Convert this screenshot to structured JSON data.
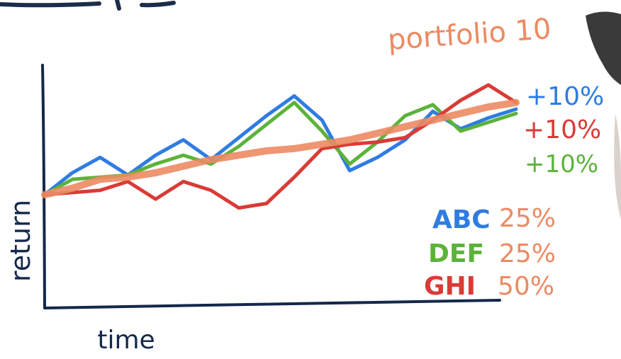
{
  "portfolio_label": "portfolio 10",
  "chart_data": {
    "type": "line",
    "xlabel": "time",
    "ylabel": "return",
    "ylim": [
      0,
      100
    ],
    "x": [
      0,
      1,
      2,
      3,
      4,
      5,
      6,
      7,
      8,
      9,
      10,
      11,
      12,
      13,
      14,
      15,
      16,
      17
    ],
    "series": [
      {
        "name": "ABC",
        "weight": "25%",
        "return_label": "+10%",
        "color": "#2f7ce3",
        "values": [
          50,
          60,
          67,
          59,
          68,
          75,
          66,
          76,
          86,
          95,
          84,
          61,
          67,
          75,
          88,
          80,
          85,
          89
        ]
      },
      {
        "name": "DEF",
        "weight": "25%",
        "return_label": "+10%",
        "color": "#5cb33a",
        "values": [
          50,
          57,
          58,
          59,
          64,
          68,
          64,
          72,
          82,
          92,
          79,
          64,
          74,
          86,
          91,
          79,
          83,
          87
        ]
      },
      {
        "name": "GHI",
        "weight": "50%",
        "return_label": "+10%",
        "color": "#d93b36",
        "values": [
          50,
          51,
          52,
          56,
          48,
          56,
          52,
          44,
          46,
          58,
          71,
          73,
          74,
          76,
          84,
          93,
          100,
          92
        ]
      }
    ],
    "portfolio": {
      "color": "#ec8a63",
      "values": [
        50,
        53,
        57,
        58,
        60,
        63,
        66,
        68,
        70,
        71,
        73,
        75,
        78,
        81,
        84,
        87,
        90,
        92
      ]
    }
  }
}
